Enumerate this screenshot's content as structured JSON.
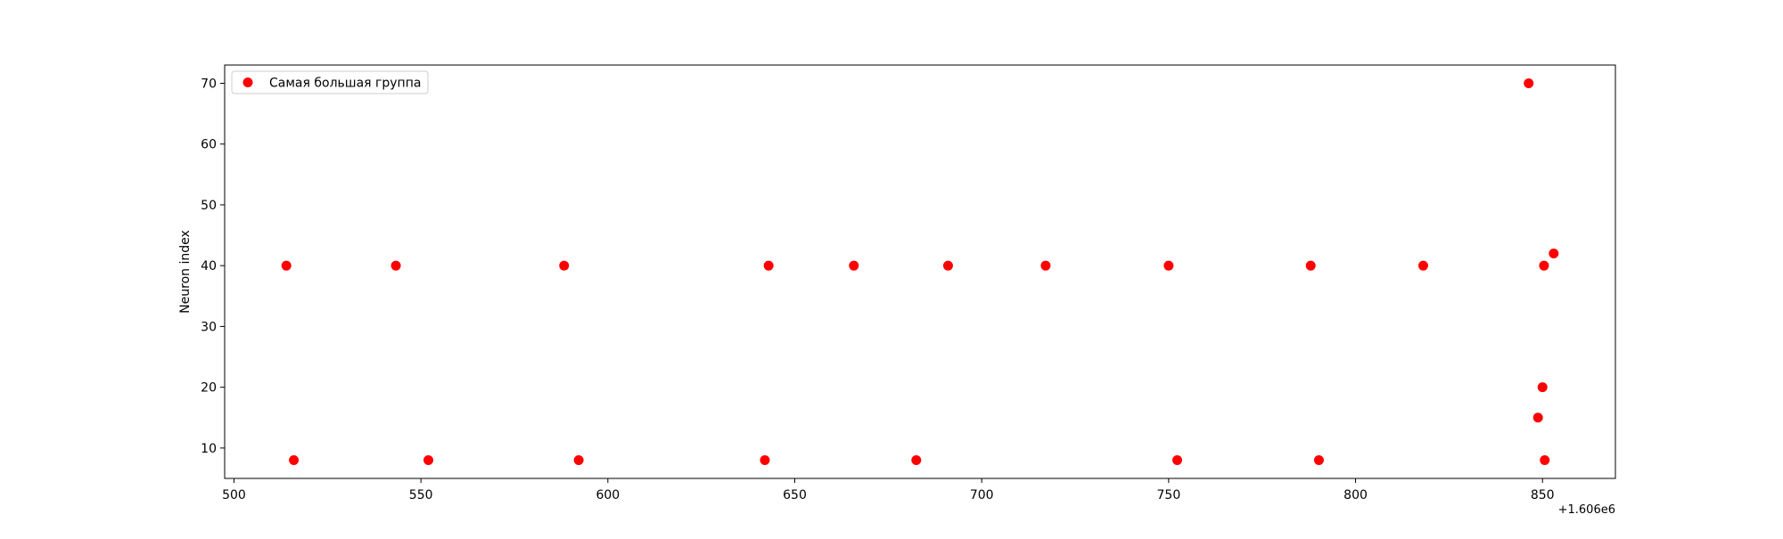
{
  "chart_data": {
    "type": "scatter",
    "xlabel": "",
    "ylabel": "Neuron index",
    "x_offset_label": "+1.606e6",
    "xlim": [
      497.5,
      869.5
    ],
    "ylim": [
      5,
      73
    ],
    "x_ticks": [
      500,
      550,
      600,
      650,
      700,
      750,
      800,
      850
    ],
    "y_ticks": [
      10,
      20,
      30,
      40,
      50,
      60,
      70
    ],
    "grid": false,
    "legend_position": "top-left",
    "series": [
      {
        "name": "Самая большая группа",
        "color": "#ff0000",
        "points": [
          {
            "x": 514.0,
            "y": 40
          },
          {
            "x": 543.3,
            "y": 40
          },
          {
            "x": 588.3,
            "y": 40
          },
          {
            "x": 643.0,
            "y": 40
          },
          {
            "x": 665.8,
            "y": 40
          },
          {
            "x": 691.0,
            "y": 40
          },
          {
            "x": 717.1,
            "y": 40
          },
          {
            "x": 750.0,
            "y": 40
          },
          {
            "x": 788.0,
            "y": 40
          },
          {
            "x": 818.1,
            "y": 40
          },
          {
            "x": 850.4,
            "y": 40
          },
          {
            "x": 853.0,
            "y": 42
          },
          {
            "x": 846.3,
            "y": 70
          },
          {
            "x": 850.0,
            "y": 20
          },
          {
            "x": 848.8,
            "y": 15
          },
          {
            "x": 516.0,
            "y": 8
          },
          {
            "x": 552.0,
            "y": 8
          },
          {
            "x": 592.2,
            "y": 8
          },
          {
            "x": 642.0,
            "y": 8
          },
          {
            "x": 682.5,
            "y": 8
          },
          {
            "x": 752.3,
            "y": 8
          },
          {
            "x": 790.2,
            "y": 8
          },
          {
            "x": 850.6,
            "y": 8
          }
        ]
      }
    ]
  }
}
